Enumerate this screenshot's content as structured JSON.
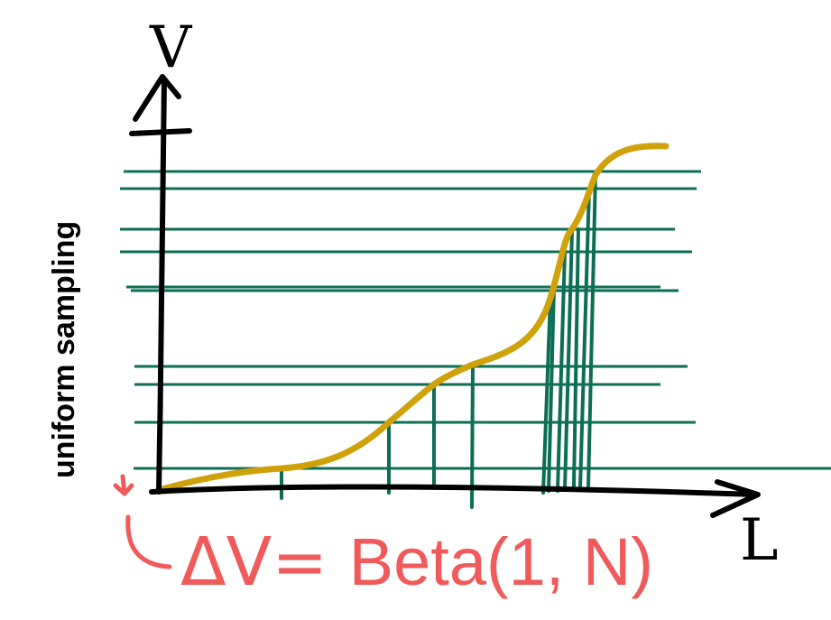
{
  "labels": {
    "y_axis": "V",
    "x_axis": "L",
    "y_description": "uniform sampling",
    "formula_prefix": "ΔV= ",
    "formula_body": "Beta(1, N)"
  },
  "colors": {
    "axes": "#000000",
    "curve": "#cfa10a",
    "sampling": "#0b6e55",
    "annotation": "#f05a5a"
  },
  "icons": {
    "y_axis_arrow": "arrow-up-icon",
    "x_axis_arrow": "arrow-right-icon",
    "annotation_marker": "small-arrow-icon"
  }
}
